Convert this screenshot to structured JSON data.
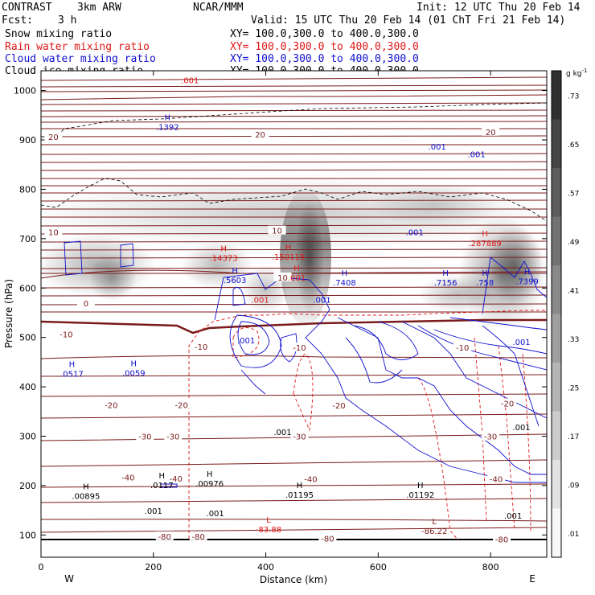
{
  "header": {
    "product": "CONTRAST",
    "model": "3km ARW",
    "center": "NCAR/MMM",
    "init": "Init: 12 UTC Thu 20 Feb 14",
    "fcst_label": "Fcst:",
    "fcst_value": "3 h",
    "valid": "Valid: 15 UTC Thu 20 Feb 14 (01 ChT Fri 21 Feb 14)"
  },
  "legend": [
    {
      "name": "Snow mixing ratio",
      "xy": "XY= 100.0,300.0 to 400.0,300.0",
      "color": "#000000"
    },
    {
      "name": "Rain water mixing ratio",
      "xy": "XY= 100.0,300.0 to 400.0,300.0",
      "color": "#e01818"
    },
    {
      "name": "Cloud water mixing ratio",
      "xy": "XY= 100.0,300.0 to 400.0,300.0",
      "color": "#1010d0"
    },
    {
      "name": "Cloud ice mixing ratio",
      "xy": "XY= 100.0,300.0 to 400.0,300.0",
      "color": "#000000"
    }
  ],
  "chart_data": {
    "type": "cross-section",
    "xlabel": "Distance (km)",
    "ylabel": "Pressure (hPa)",
    "xlim": [
      0,
      900
    ],
    "ylim": [
      1040,
      55
    ],
    "x_ticks": [
      0,
      200,
      400,
      600,
      800
    ],
    "y_ticks": [
      100,
      200,
      300,
      400,
      500,
      600,
      700,
      800,
      900,
      1000
    ],
    "end_labels": {
      "left": "W",
      "right": "E"
    },
    "colorbar": {
      "unit": "g kg",
      "unit_exp": "-1",
      "levels": [
        0.01,
        0.09,
        0.17,
        0.25,
        0.33,
        0.41,
        0.49,
        0.57,
        0.65,
        0.73
      ],
      "labels": [
        ".01",
        ".09",
        ".17",
        ".25",
        ".33",
        ".41",
        ".49",
        ".57",
        ".65",
        ".73"
      ]
    },
    "temperature_isotherms_degC": [
      20,
      10,
      0,
      -10,
      -20,
      -30,
      -40,
      -80
    ],
    "temperature_labels": [
      {
        "x": 22,
        "p": 905,
        "text": "20"
      },
      {
        "x": 390,
        "p": 910,
        "text": "20"
      },
      {
        "x": 800,
        "p": 915,
        "text": "20"
      },
      {
        "x": 22,
        "p": 712,
        "text": "10"
      },
      {
        "x": 420,
        "p": 715,
        "text": "10"
      },
      {
        "x": 80,
        "p": 568,
        "text": "0"
      },
      {
        "x": 430,
        "p": 620,
        "text": "10"
      },
      {
        "x": 45,
        "p": 505,
        "text": "-10"
      },
      {
        "x": 285,
        "p": 480,
        "text": "-10"
      },
      {
        "x": 460,
        "p": 478,
        "text": "-10"
      },
      {
        "x": 750,
        "p": 478,
        "text": "-10"
      },
      {
        "x": 125,
        "p": 362,
        "text": "-20"
      },
      {
        "x": 250,
        "p": 362,
        "text": "-20"
      },
      {
        "x": 530,
        "p": 361,
        "text": "-20"
      },
      {
        "x": 830,
        "p": 365,
        "text": "-20"
      },
      {
        "x": 185,
        "p": 298,
        "text": "-30"
      },
      {
        "x": 235,
        "p": 298,
        "text": "-30"
      },
      {
        "x": 460,
        "p": 298,
        "text": "-30"
      },
      {
        "x": 800,
        "p": 298,
        "text": "-30"
      },
      {
        "x": 155,
        "p": 215,
        "text": "-40"
      },
      {
        "x": 240,
        "p": 213,
        "text": "-40"
      },
      {
        "x": 480,
        "p": 212,
        "text": "-40"
      },
      {
        "x": 810,
        "p": 212,
        "text": "-40"
      },
      {
        "x": 220,
        "p": 96,
        "text": "-80"
      },
      {
        "x": 280,
        "p": 96,
        "text": "-80"
      },
      {
        "x": 510,
        "p": 92,
        "text": "-80"
      },
      {
        "x": 820,
        "p": 90,
        "text": "-80"
      }
    ],
    "highs_lows": [
      {
        "kind": "H",
        "x": 80,
        "p": 188,
        "value": ".00895",
        "color": "#000000"
      },
      {
        "kind": "H",
        "x": 215,
        "p": 210,
        "value": ".0117",
        "color": "#000000"
      },
      {
        "kind": "H",
        "x": 300,
        "p": 213,
        "value": ".00976",
        "color": "#000000"
      },
      {
        "kind": "H",
        "x": 460,
        "p": 190,
        "value": ".01195",
        "color": "#000000"
      },
      {
        "kind": "H",
        "x": 675,
        "p": 190,
        "value": ".01192",
        "color": "#000000"
      },
      {
        "kind": "L",
        "x": 405,
        "p": 120,
        "value": "-83.88",
        "color": "#e01818"
      },
      {
        "kind": "L",
        "x": 700,
        "p": 117,
        "value": "-86.22",
        "color": "#7a1a1a"
      },
      {
        "kind": "H",
        "x": 55,
        "p": 435,
        "value": ".0517",
        "color": "#1010d0"
      },
      {
        "kind": "H",
        "x": 165,
        "p": 437,
        "value": ".0059",
        "color": "#1010d0"
      },
      {
        "kind": "H",
        "x": 345,
        "p": 625,
        "value": ".5603",
        "color": "#1010d0"
      },
      {
        "kind": "H",
        "x": 455,
        "p": 630,
        "value": ".001",
        "color": "#e01818"
      },
      {
        "kind": "H",
        "x": 325,
        "p": 670,
        "value": ".14373",
        "color": "#e01818"
      },
      {
        "kind": "H",
        "x": 440,
        "p": 672,
        "value": ".150115",
        "color": "#e01818"
      },
      {
        "kind": "H",
        "x": 540,
        "p": 620,
        "value": ".7408",
        "color": "#1010d0"
      },
      {
        "kind": "H",
        "x": 720,
        "p": 620,
        "value": ".7156",
        "color": "#1010d0"
      },
      {
        "kind": "H",
        "x": 790,
        "p": 620,
        "value": ".758",
        "color": "#1010d0"
      },
      {
        "kind": "H",
        "x": 865,
        "p": 622,
        "value": ".7399",
        "color": "#1010d0"
      },
      {
        "kind": "H",
        "x": 790,
        "p": 700,
        "value": ".287889",
        "color": "#e01818"
      },
      {
        "kind": "H",
        "x": 225,
        "p": 935,
        "value": ".1392",
        "color": "#1010d0"
      }
    ],
    "contour_value_labels": [
      {
        "x": 200,
        "p": 148,
        "text": ".001",
        "color": "#000000"
      },
      {
        "x": 310,
        "p": 143,
        "text": ".001",
        "color": "#000000"
      },
      {
        "x": 840,
        "p": 138,
        "text": ".001",
        "color": "#000000"
      },
      {
        "x": 430,
        "p": 307,
        "text": ".001",
        "color": "#000000"
      },
      {
        "x": 855,
        "p": 317,
        "text": ".001",
        "color": "#000000"
      },
      {
        "x": 365,
        "p": 493,
        "text": ".001",
        "color": "#1010d0"
      },
      {
        "x": 855,
        "p": 490,
        "text": ".001",
        "color": "#1010d0"
      },
      {
        "x": 390,
        "p": 575,
        "text": ".001",
        "color": "#e01818"
      },
      {
        "x": 500,
        "p": 575,
        "text": ".001",
        "color": "#1010d0"
      },
      {
        "x": 665,
        "p": 712,
        "text": ".001",
        "color": "#1010d0"
      },
      {
        "x": 775,
        "p": 870,
        "text": ".001",
        "color": "#1010d0"
      },
      {
        "x": 705,
        "p": 885,
        "text": ".001",
        "color": "#1010d0"
      },
      {
        "x": 265,
        "p": 1020,
        "text": ".001",
        "color": "#e01818"
      }
    ]
  }
}
